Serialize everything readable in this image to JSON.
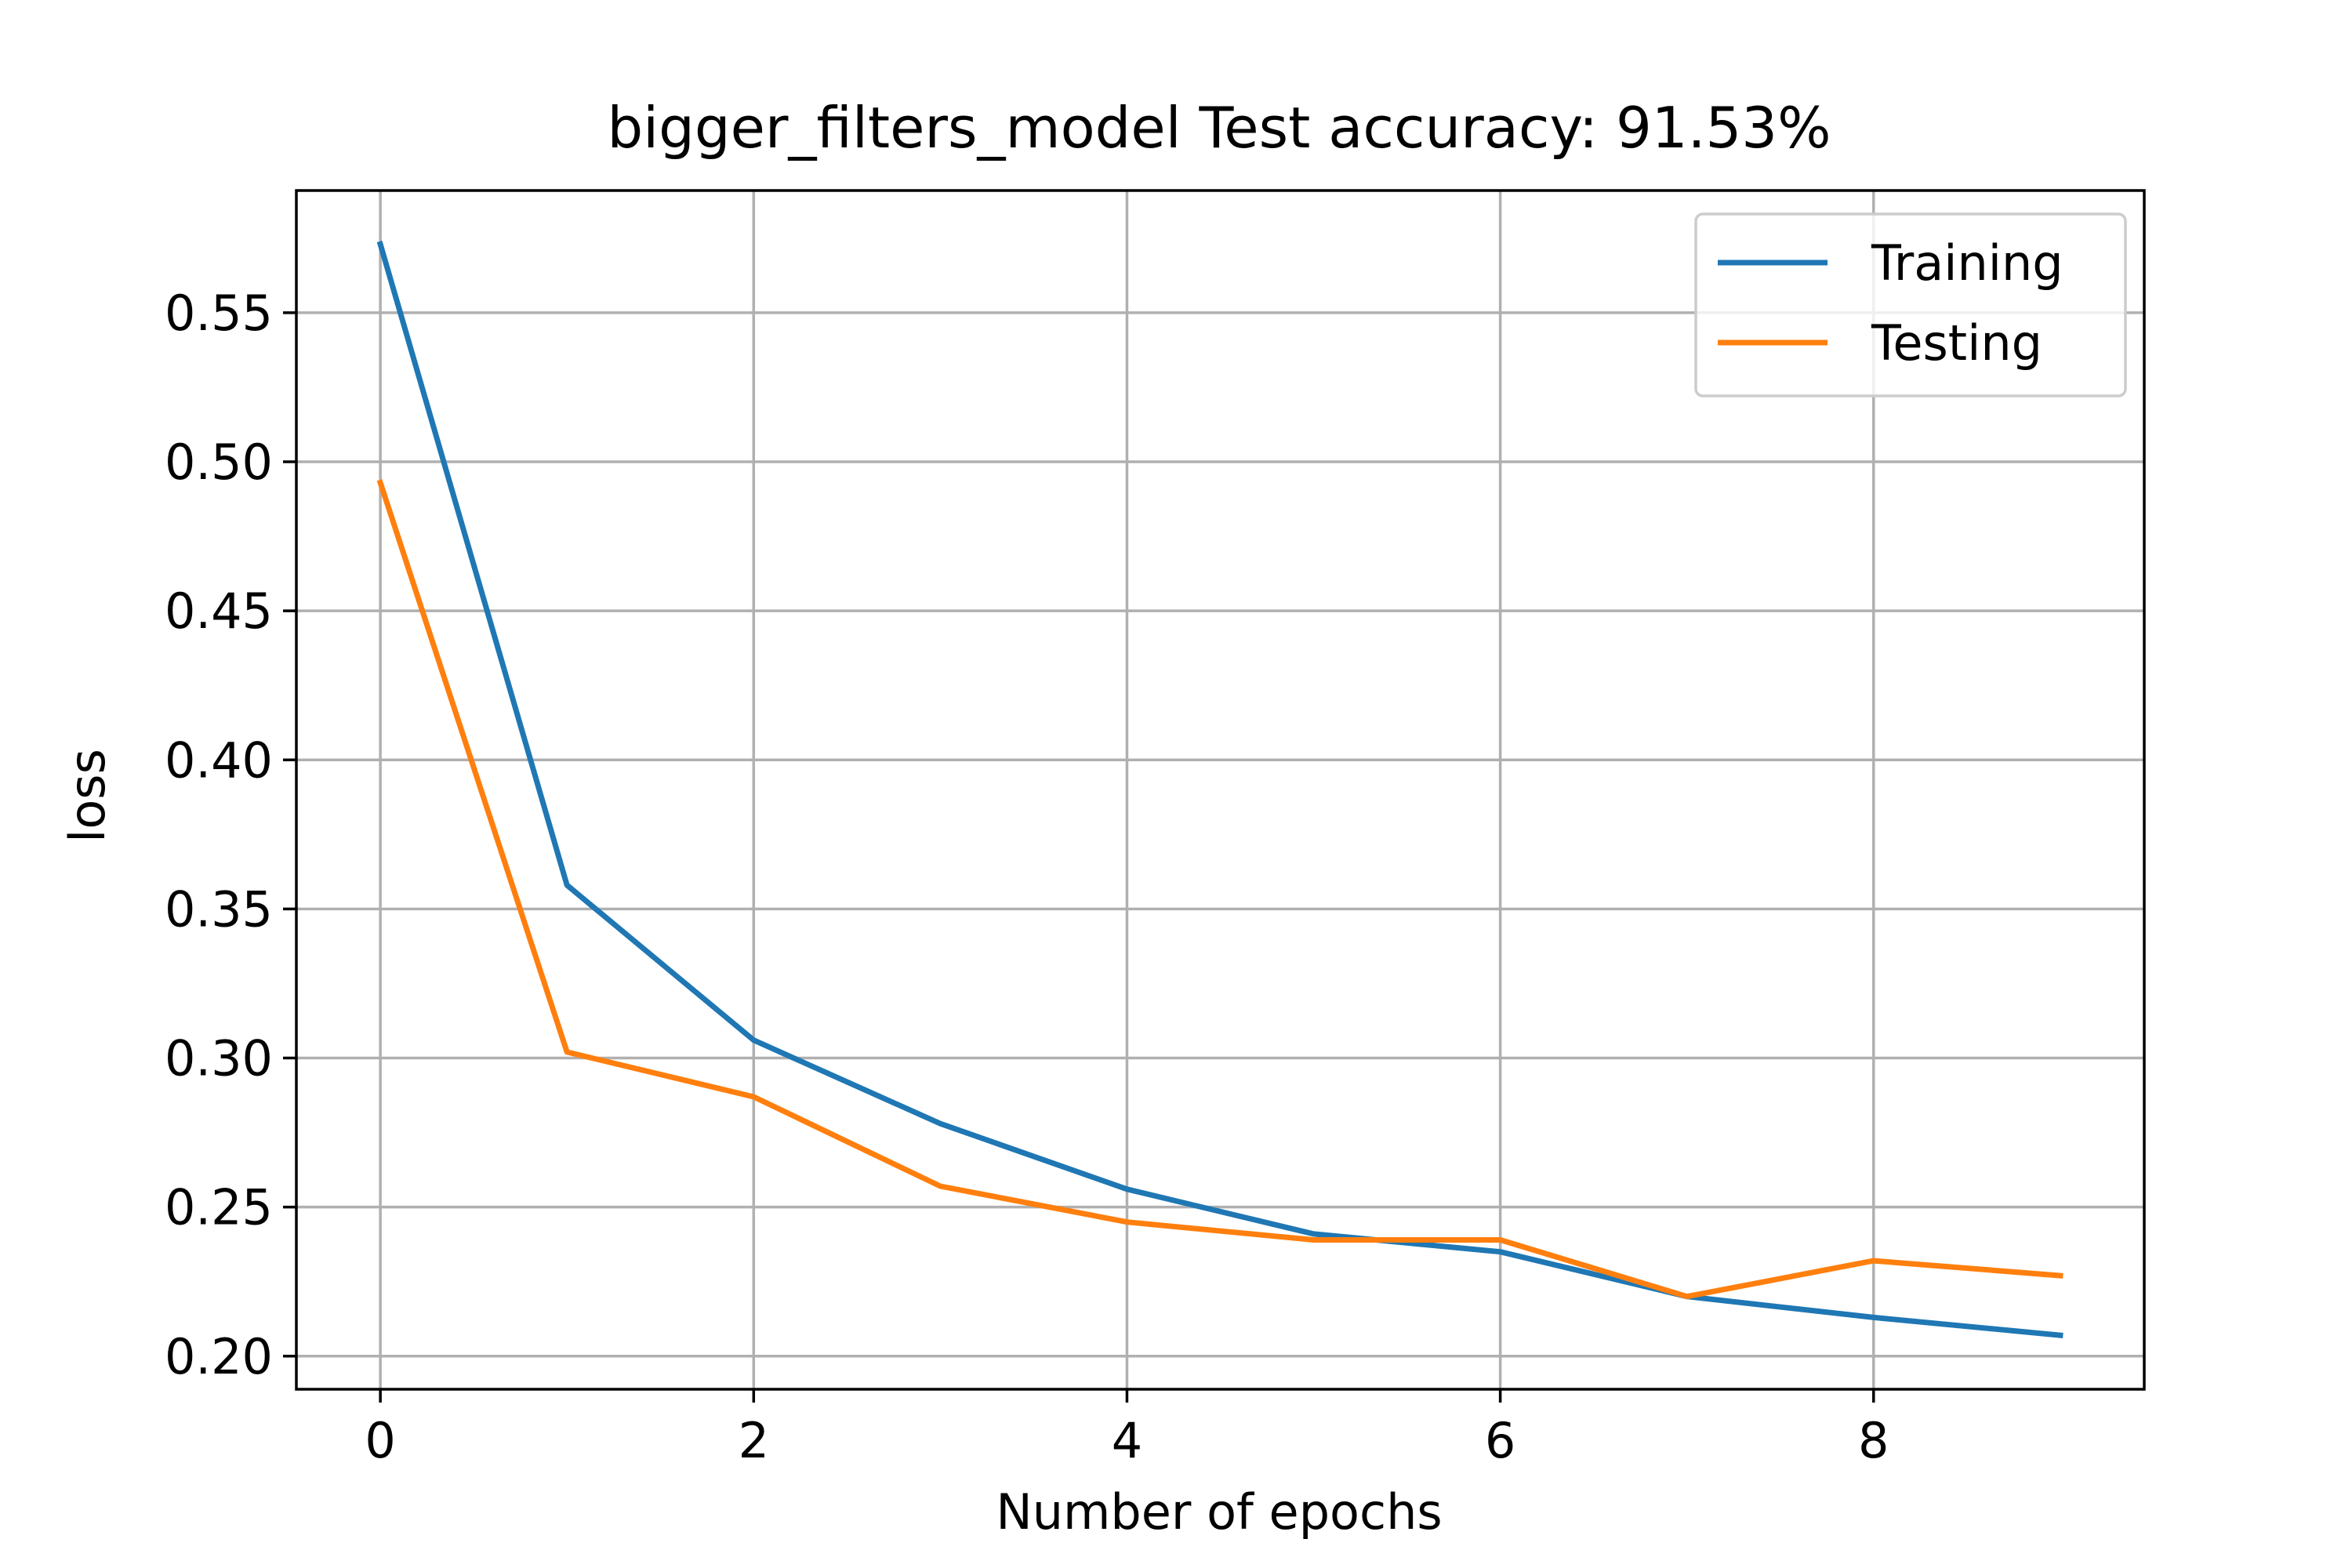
{
  "chart_data": {
    "type": "line",
    "title": "bigger_filters_model Test accuracy: 91.53%",
    "xlabel": "Number of epochs",
    "ylabel": "loss",
    "xlim": [
      -0.45,
      9.45
    ],
    "ylim": [
      0.1889,
      0.591
    ],
    "xticks": [
      0,
      2,
      4,
      6,
      8
    ],
    "xtick_labels": [
      "0",
      "2",
      "4",
      "6",
      "8"
    ],
    "yticks": [
      0.2,
      0.25,
      0.3,
      0.35,
      0.4,
      0.45,
      0.5,
      0.55
    ],
    "ytick_labels": [
      "0.20",
      "0.25",
      "0.30",
      "0.35",
      "0.40",
      "0.45",
      "0.50",
      "0.55"
    ],
    "grid": true,
    "legend_position": "upper right",
    "x": [
      0,
      1,
      2,
      3,
      4,
      5,
      6,
      7,
      8,
      9
    ],
    "series": [
      {
        "name": "Training",
        "color": "#1f77b4",
        "values": [
          0.573,
          0.358,
          0.306,
          0.278,
          0.256,
          0.241,
          0.235,
          0.22,
          0.213,
          0.207
        ]
      },
      {
        "name": "Testing",
        "color": "#ff7f0e",
        "values": [
          0.493,
          0.302,
          0.287,
          0.257,
          0.245,
          0.239,
          0.239,
          0.22,
          0.232,
          0.227
        ]
      }
    ]
  }
}
